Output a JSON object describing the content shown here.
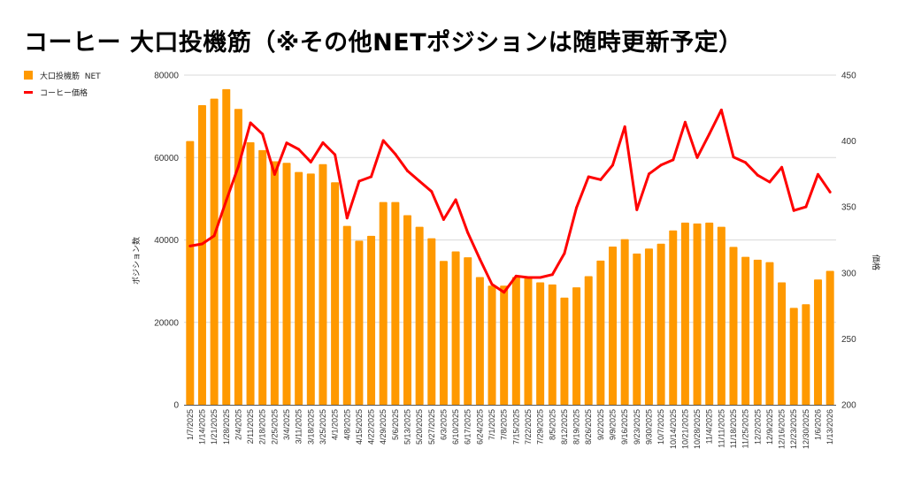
{
  "chart_data": {
    "type": "bar+line",
    "title": "コーヒー 大口投機筋（※その他NETポジションは随時更新予定）",
    "legend": {
      "position": "top-left",
      "entries": [
        "大口投機筋  NET",
        "コーヒー価格"
      ]
    },
    "colors": {
      "bars": "#ff9900",
      "line": "#ff0000",
      "grid": "#d9d9d9",
      "axis": "#333333"
    },
    "ylabel_left": "ポジション数",
    "ylabel_right": "価格",
    "ylim_left": [
      0,
      80000
    ],
    "yticks_left": [
      "0",
      "20000",
      "40000",
      "60000",
      "80000"
    ],
    "ylim_right": [
      200,
      450
    ],
    "yticks_right": [
      "200",
      "250",
      "300",
      "350",
      "400",
      "450"
    ],
    "grid": true,
    "categories": [
      "1/7/2025",
      "1/14/2025",
      "1/21/2025",
      "1/28/2025",
      "2/4/2025",
      "2/11/2025",
      "2/18/2025",
      "2/25/2025",
      "3/4/2025",
      "3/11/2025",
      "3/18/2025",
      "3/25/2025",
      "4/1/2025",
      "4/8/2025",
      "4/15/2025",
      "4/22/2025",
      "4/29/2025",
      "5/6/2025",
      "5/13/2025",
      "5/20/2025",
      "5/27/2025",
      "6/3/2025",
      "6/10/2025",
      "6/17/2025",
      "6/24/2025",
      "7/1/2025",
      "7/8/2025",
      "7/15/2025",
      "7/22/2025",
      "7/29/2025",
      "8/5/2025",
      "8/12/2025",
      "8/19/2025",
      "8/26/2025",
      "9/2/2025",
      "9/9/2025",
      "9/16/2025",
      "9/23/2025",
      "9/30/2025",
      "10/7/2025",
      "10/14/2025",
      "10/21/2025",
      "10/28/2025",
      "11/4/2025",
      "11/11/2025",
      "11/18/2025",
      "11/25/2025",
      "12/2/2025",
      "12/9/2025",
      "12/16/2025",
      "12/23/2025",
      "12/30/2025",
      "1/6/2026",
      "1/13/2026"
    ],
    "series": [
      {
        "name": "大口投機筋  NET",
        "type": "bar",
        "axis": "left",
        "values": [
          64000,
          72700,
          74300,
          76600,
          71800,
          63700,
          61800,
          59100,
          58700,
          56500,
          56100,
          58400,
          54000,
          43400,
          39800,
          41000,
          49200,
          49200,
          46000,
          43200,
          40400,
          34900,
          37200,
          35800,
          31000,
          28900,
          28900,
          31000,
          30700,
          29700,
          29200,
          26000,
          28500,
          31200,
          35000,
          38400,
          40200,
          36700,
          37900,
          39100,
          42300,
          44200,
          44000,
          44200,
          43200,
          38300,
          35900,
          35200,
          34600,
          29700,
          23500,
          24400,
          30400,
          32500
        ]
      },
      {
        "name": "コーヒー価格",
        "type": "line",
        "axis": "right",
        "values": [
          320.4,
          322,
          328.2,
          355,
          380.7,
          413.8,
          405.3,
          374.7,
          398.6,
          393.7,
          384.1,
          398.8,
          389.7,
          341.6,
          369.6,
          372.9,
          400.4,
          390.1,
          377.4,
          369.6,
          361.7,
          340.5,
          355.5,
          330.5,
          310.4,
          291.4,
          285.3,
          297.6,
          296.5,
          296.5,
          298.7,
          314.8,
          349.5,
          372.9,
          370.7,
          381.8,
          410.9,
          347.9,
          375.1,
          381.8,
          385.7,
          414.3,
          387.5,
          405.3,
          423.6,
          387.9,
          383.7,
          374.1,
          368.9,
          380.1,
          347.3,
          350.1,
          374.7,
          361.3
        ]
      }
    ]
  }
}
